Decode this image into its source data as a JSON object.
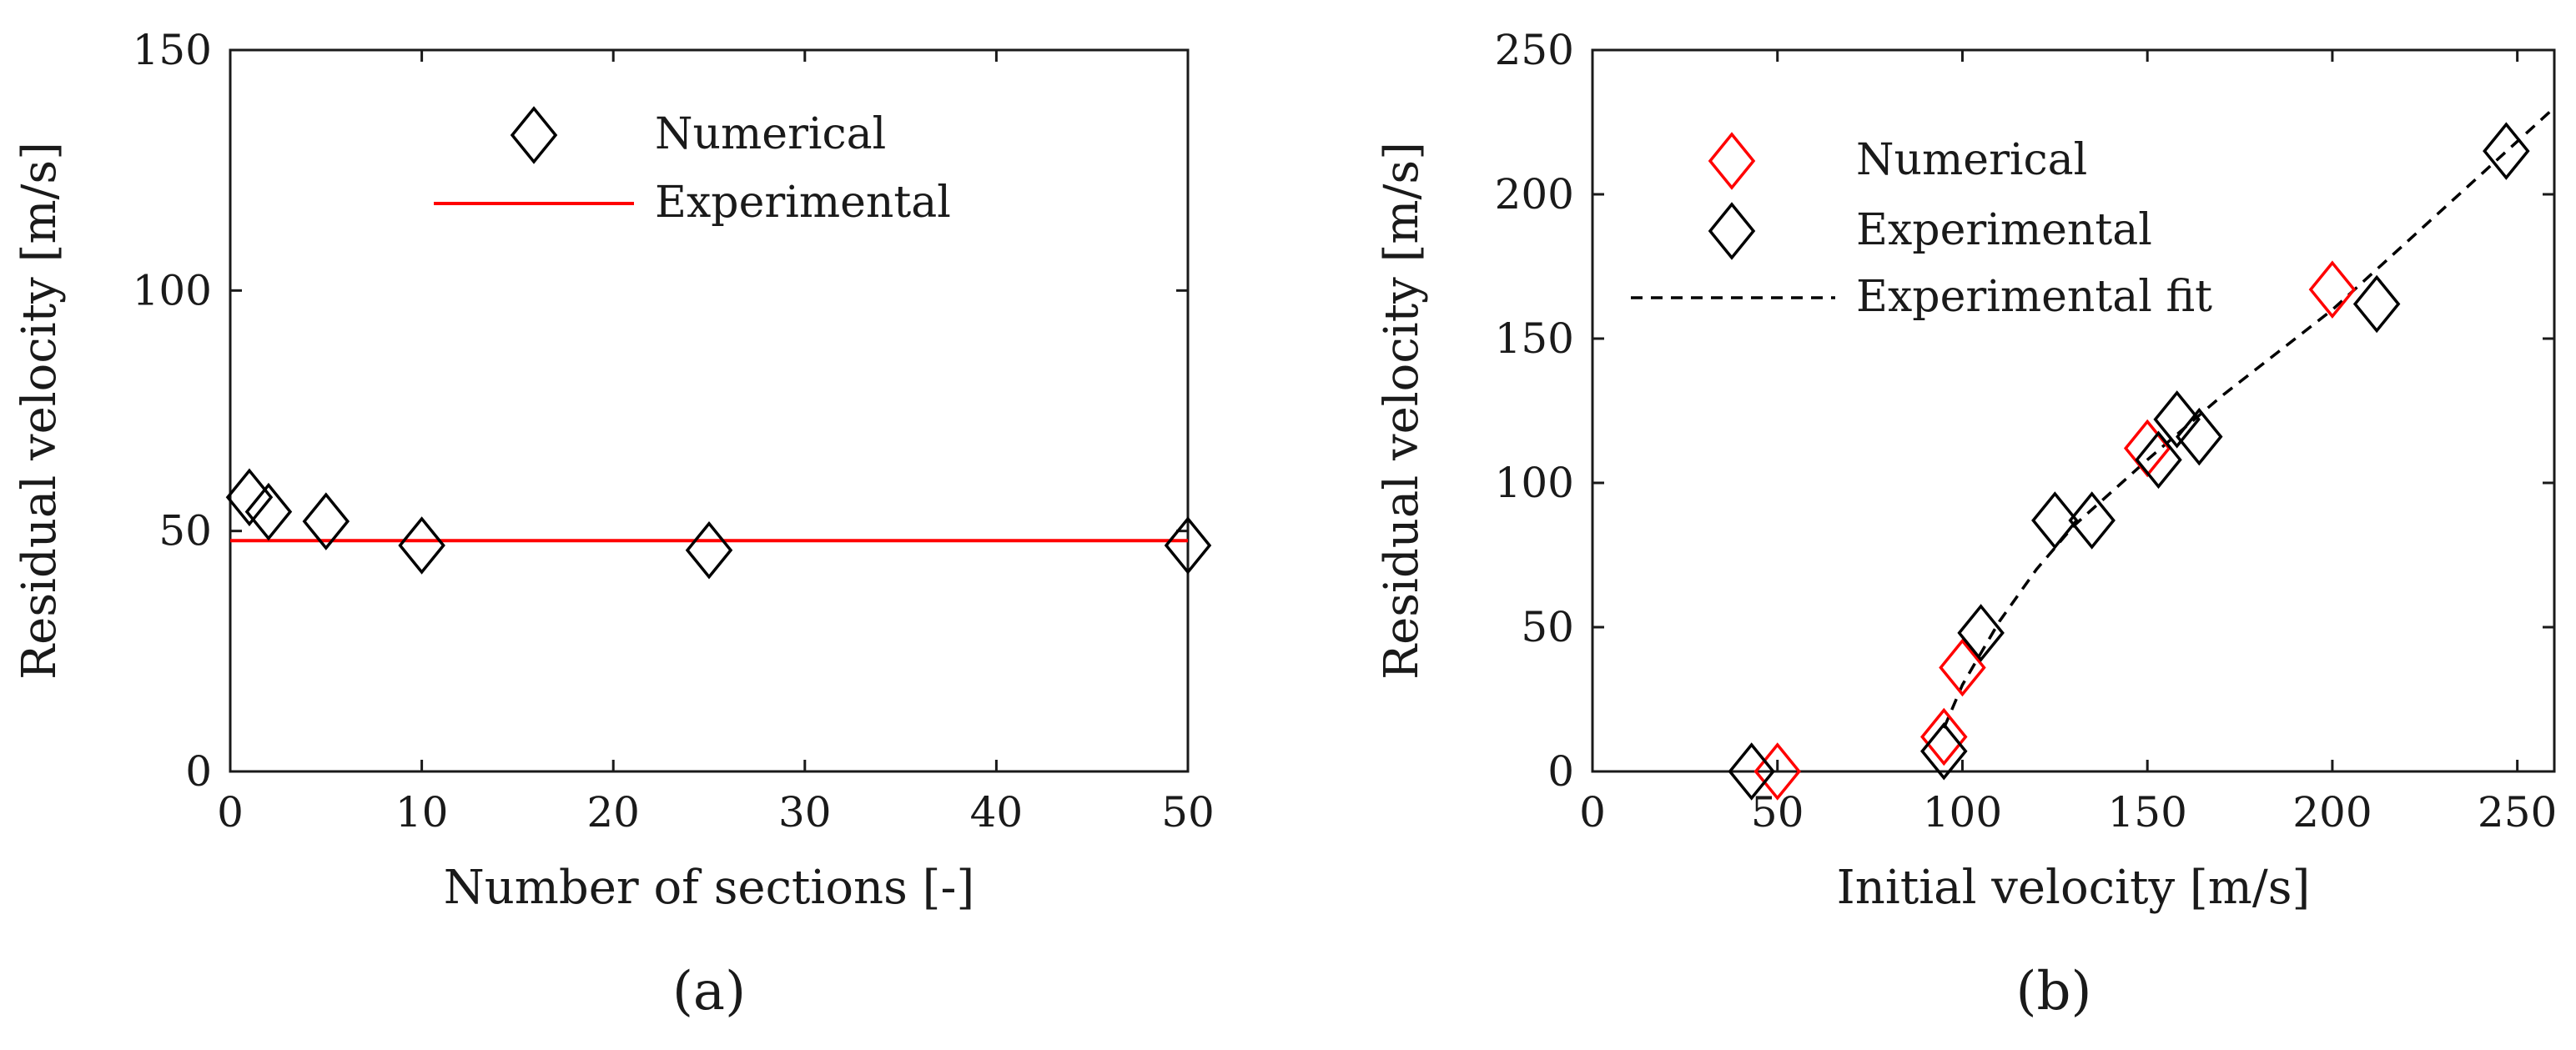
{
  "colors": {
    "numerical_b": "#ff0000",
    "experimental_line": "#ff0000",
    "marker": "#000000",
    "axes": "#1a1a1a"
  },
  "chart_data": [
    {
      "type": "scatter",
      "panel_label": "(a)",
      "title": "",
      "xlabel": "Number of sections [-]",
      "ylabel": "Residual velocity [m/s]",
      "xlim": [
        0,
        50
      ],
      "ylim": [
        0,
        150
      ],
      "xticks": [
        0,
        10,
        20,
        30,
        40,
        50
      ],
      "yticks": [
        0,
        50,
        100,
        150
      ],
      "grid": false,
      "legend_position": "top-center",
      "series": [
        {
          "name": "Numerical",
          "kind": "marker",
          "marker": "diamond-open",
          "color": "#000000",
          "x": [
            1,
            2,
            5,
            10,
            25,
            50
          ],
          "y": [
            57,
            54,
            52,
            47,
            46,
            47
          ]
        },
        {
          "name": "Experimental",
          "kind": "hline",
          "color": "#ff0000",
          "y": 48
        }
      ]
    },
    {
      "type": "scatter",
      "panel_label": "(b)",
      "title": "",
      "xlabel": "Initial velocity [m/s]",
      "ylabel": "Residual velocity [m/s]",
      "xlim": [
        0,
        260
      ],
      "ylim": [
        0,
        250
      ],
      "xticks": [
        0,
        50,
        100,
        150,
        200,
        250
      ],
      "yticks": [
        0,
        50,
        100,
        150,
        200,
        250
      ],
      "grid": false,
      "legend_position": "top-left",
      "series": [
        {
          "name": "Numerical",
          "kind": "marker",
          "marker": "diamond-open",
          "color": "#ff0000",
          "x": [
            50,
            95,
            100,
            150,
            200
          ],
          "y": [
            0,
            12,
            36,
            112,
            167
          ]
        },
        {
          "name": "Experimental",
          "kind": "marker",
          "marker": "diamond-open",
          "color": "#000000",
          "x": [
            43,
            95,
            105,
            125,
            135,
            153,
            158,
            164,
            212,
            247
          ],
          "y": [
            0,
            7,
            48,
            87,
            87,
            108,
            122,
            116,
            162,
            215
          ]
        },
        {
          "name": "Experimental fit",
          "kind": "dashed-line",
          "color": "#000000",
          "x": [
            95,
            100,
            110,
            120,
            130,
            150,
            170,
            200,
            230,
            260
          ],
          "y": [
            15,
            30,
            52,
            70,
            85,
            108,
            130,
            160,
            195,
            230
          ]
        }
      ]
    }
  ]
}
